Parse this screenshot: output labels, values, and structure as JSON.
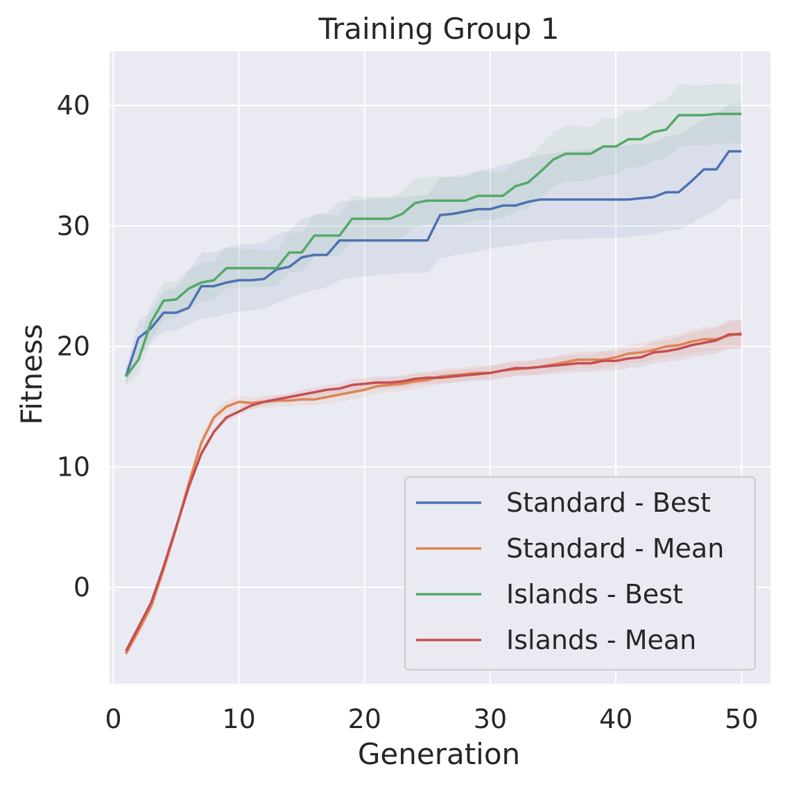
{
  "chart_data": {
    "type": "line",
    "title": "Training Group 1",
    "xlabel": "Generation",
    "ylabel": "Fitness",
    "xlim": [
      -0.3,
      52.3
    ],
    "ylim": [
      -8,
      44.5
    ],
    "xticks": [
      0,
      10,
      20,
      30,
      40,
      50
    ],
    "yticks": [
      0,
      10,
      20,
      30,
      40
    ],
    "grid": true,
    "legend_position": "lower-right",
    "x": [
      1,
      2,
      3,
      4,
      5,
      6,
      7,
      8,
      9,
      10,
      11,
      12,
      13,
      14,
      15,
      16,
      17,
      18,
      19,
      20,
      21,
      22,
      23,
      24,
      25,
      26,
      27,
      28,
      29,
      30,
      31,
      32,
      33,
      34,
      35,
      36,
      37,
      38,
      39,
      40,
      41,
      42,
      43,
      44,
      45,
      46,
      47,
      48,
      49,
      50
    ],
    "series": [
      {
        "name": "Standard - Best",
        "color": "#4c72b0",
        "values": [
          17.5,
          20.7,
          21.5,
          22.8,
          22.8,
          23.2,
          25,
          25,
          25.3,
          25.5,
          25.5,
          25.6,
          26.4,
          26.6,
          27.4,
          27.6,
          27.6,
          28.8,
          28.8,
          28.8,
          28.8,
          28.8,
          28.8,
          28.8,
          28.8,
          30.9,
          31,
          31.2,
          31.4,
          31.4,
          31.7,
          31.7,
          32,
          32.2,
          32.2,
          32.2,
          32.2,
          32.2,
          32.2,
          32.2,
          32.2,
          32.3,
          32.4,
          32.8,
          32.8,
          33.7,
          34.7,
          34.7,
          36.2,
          36.2
        ],
        "lower": [
          16.8,
          19.2,
          20.3,
          21.2,
          21.3,
          21.8,
          22.3,
          22.4,
          22.7,
          22.9,
          23,
          23.1,
          23.6,
          24,
          24.4,
          24.7,
          24.9,
          25.5,
          25.7,
          25.8,
          25.9,
          26,
          26.1,
          26.1,
          26.1,
          27.3,
          27.5,
          27.7,
          27.9,
          28.1,
          28.3,
          28.4,
          28.6,
          28.7,
          28.8,
          28.9,
          28.9,
          29,
          29,
          29,
          29.1,
          29.2,
          29.3,
          29.6,
          29.7,
          30.2,
          30.8,
          31.3,
          32.2,
          32.3
        ],
        "upper": [
          18.2,
          22.1,
          22.9,
          24.6,
          24.9,
          26.3,
          27.8,
          27.8,
          28.2,
          28.5,
          28.5,
          28.6,
          29.3,
          29.6,
          30.6,
          30.9,
          31.1,
          32.1,
          32.1,
          32.2,
          32.3,
          32.3,
          32.4,
          32.5,
          32.6,
          34,
          34.1,
          34.3,
          34.6,
          34.8,
          35.1,
          35.3,
          35.6,
          35.9,
          36,
          36.2,
          36.3,
          36.4,
          36.5,
          36.6,
          36.7,
          36.8,
          36.9,
          37.4,
          37.6,
          38.2,
          38.9,
          39.3,
          40.1,
          40.2
        ]
      },
      {
        "name": "Standard - Mean",
        "color": "#dd8452",
        "values": [
          -5.5,
          -3.6,
          -1.6,
          1.5,
          4.9,
          8.6,
          12,
          14.1,
          15,
          15.4,
          15.3,
          15.4,
          15.5,
          15.5,
          15.6,
          15.6,
          15.8,
          16,
          16.2,
          16.4,
          16.7,
          16.8,
          16.9,
          17.1,
          17.2,
          17.5,
          17.6,
          17.7,
          17.8,
          17.8,
          18,
          18.1,
          18.2,
          18.3,
          18.5,
          18.7,
          18.9,
          18.9,
          18.9,
          19.1,
          19.4,
          19.5,
          19.7,
          20,
          20.1,
          20.4,
          20.6,
          20.6,
          20.9,
          21.1
        ],
        "lower": [
          -5.9,
          -4,
          -2,
          1,
          4.4,
          8.1,
          11.5,
          13.6,
          14.5,
          14.9,
          14.8,
          14.9,
          15,
          15,
          15.1,
          15.1,
          15.2,
          15.4,
          15.6,
          15.8,
          16.1,
          16.2,
          16.3,
          16.5,
          16.6,
          16.9,
          17,
          17.1,
          17.2,
          17.2,
          17.4,
          17.5,
          17.6,
          17.7,
          17.9,
          18,
          18.2,
          18.2,
          18.2,
          18.4,
          18.6,
          18.7,
          18.9,
          19.1,
          19.2,
          19.4,
          19.6,
          19.6,
          19.8,
          19.9
        ],
        "upper": [
          -5.1,
          -3.2,
          -1.2,
          2,
          5.4,
          9.1,
          12.5,
          14.6,
          15.5,
          15.9,
          15.8,
          15.9,
          16,
          16,
          16.1,
          16.1,
          16.4,
          16.6,
          16.8,
          17,
          17.3,
          17.4,
          17.5,
          17.7,
          17.8,
          18.1,
          18.2,
          18.3,
          18.4,
          18.4,
          18.6,
          18.7,
          18.8,
          18.9,
          19.1,
          19.4,
          19.6,
          19.6,
          19.6,
          19.8,
          20.2,
          20.3,
          20.5,
          20.9,
          21,
          21.4,
          21.6,
          21.6,
          22,
          22.3
        ]
      },
      {
        "name": "Islands - Best",
        "color": "#55a868",
        "values": [
          17.5,
          18.9,
          22,
          23.8,
          23.9,
          24.8,
          25.3,
          25.5,
          26.5,
          26.5,
          26.5,
          26.5,
          26.5,
          27.8,
          27.8,
          29.2,
          29.2,
          29.2,
          30.6,
          30.6,
          30.6,
          30.6,
          31,
          31.9,
          32.1,
          32.1,
          32.1,
          32.1,
          32.5,
          32.5,
          32.5,
          33.3,
          33.6,
          34.5,
          35.5,
          36,
          36,
          36,
          36.6,
          36.6,
          37.2,
          37.2,
          37.8,
          38,
          39.2,
          39.2,
          39.2,
          39.3,
          39.3,
          39.3
        ],
        "lower": [
          16.8,
          17.7,
          20.5,
          22.2,
          22.4,
          23.2,
          23.7,
          23.9,
          24.8,
          24.9,
          24.9,
          25,
          25,
          26.1,
          26.2,
          27.4,
          27.5,
          27.5,
          28.7,
          28.8,
          28.8,
          28.8,
          29.1,
          29.9,
          30.1,
          30.1,
          30.1,
          30.2,
          30.5,
          30.5,
          30.6,
          31.2,
          31.5,
          32.3,
          33.2,
          33.7,
          33.7,
          33.8,
          34.2,
          34.3,
          34.8,
          34.9,
          35.4,
          35.6,
          36.6,
          36.7,
          36.7,
          36.8,
          36.8,
          36.9
        ],
        "upper": [
          18.2,
          20.1,
          23.5,
          25.4,
          25.4,
          26.4,
          26.9,
          27.1,
          28.2,
          28.1,
          28.1,
          28,
          28,
          29.5,
          29.4,
          31,
          30.9,
          30.9,
          32.5,
          32.4,
          32.4,
          32.4,
          32.9,
          33.9,
          34.1,
          34.1,
          34.1,
          34,
          34.5,
          34.5,
          34.4,
          35.4,
          35.7,
          36.7,
          37.8,
          38.3,
          38.3,
          38.2,
          39,
          38.9,
          39.6,
          39.5,
          40.2,
          40.4,
          41.8,
          41.7,
          41.7,
          41.8,
          41.8,
          41.7
        ]
      },
      {
        "name": "Islands - Mean",
        "color": "#c44e52",
        "values": [
          -5.3,
          -3.3,
          -1.3,
          1.7,
          5,
          8.3,
          11.1,
          12.9,
          14.1,
          14.6,
          15.1,
          15.4,
          15.6,
          15.8,
          16,
          16.2,
          16.4,
          16.5,
          16.8,
          16.9,
          17,
          17,
          17.1,
          17.3,
          17.4,
          17.4,
          17.5,
          17.6,
          17.7,
          17.8,
          18,
          18.2,
          18.2,
          18.3,
          18.4,
          18.5,
          18.6,
          18.6,
          18.8,
          18.8,
          19,
          19.1,
          19.5,
          19.6,
          19.8,
          20.1,
          20.3,
          20.5,
          21,
          21
        ],
        "lower": [
          -5.6,
          -3.6,
          -1.6,
          1.4,
          4.7,
          8,
          10.8,
          12.6,
          13.8,
          14.3,
          14.8,
          15.1,
          15.3,
          15.5,
          15.6,
          15.8,
          16,
          16.1,
          16.3,
          16.4,
          16.5,
          16.5,
          16.6,
          16.8,
          16.9,
          16.9,
          17,
          17.1,
          17.2,
          17.2,
          17.4,
          17.6,
          17.6,
          17.6,
          17.7,
          17.8,
          17.9,
          17.9,
          18,
          18,
          18.2,
          18.3,
          18.6,
          18.7,
          18.8,
          19.1,
          19.2,
          19.4,
          19.8,
          19.8
        ],
        "upper": [
          -5,
          -3,
          -1,
          2,
          5.3,
          8.6,
          11.4,
          13.2,
          14.4,
          14.9,
          15.4,
          15.7,
          15.9,
          16.1,
          16.4,
          16.6,
          16.8,
          16.9,
          17.3,
          17.4,
          17.5,
          17.5,
          17.6,
          17.8,
          17.9,
          17.9,
          18,
          18.1,
          18.2,
          18.4,
          18.6,
          18.8,
          18.8,
          19,
          19.1,
          19.2,
          19.3,
          19.3,
          19.6,
          19.6,
          19.8,
          19.9,
          20.4,
          20.5,
          20.8,
          21.1,
          21.4,
          21.6,
          22.2,
          22.2
        ]
      }
    ]
  }
}
